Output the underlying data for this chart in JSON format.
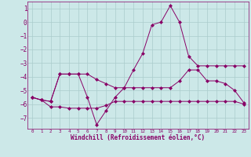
{
  "x": [
    0,
    1,
    2,
    3,
    4,
    5,
    6,
    7,
    8,
    9,
    10,
    11,
    12,
    13,
    14,
    15,
    16,
    17,
    18,
    19,
    20,
    21,
    22,
    23
  ],
  "line1": [
    -5.5,
    -5.7,
    -5.8,
    -3.8,
    -3.8,
    -3.8,
    -5.5,
    -7.5,
    -6.5,
    -5.5,
    -4.8,
    -3.5,
    -2.3,
    -0.2,
    0.0,
    1.2,
    0.0,
    -2.5,
    -3.2,
    -3.2,
    -3.2,
    -3.2,
    -3.2,
    -3.2
  ],
  "line2": [
    -5.5,
    -5.7,
    -5.8,
    -3.8,
    -3.8,
    -3.8,
    -3.8,
    -4.2,
    -4.5,
    -4.8,
    -4.8,
    -4.8,
    -4.8,
    -4.8,
    -4.8,
    -4.8,
    -4.3,
    -3.5,
    -3.5,
    -4.3,
    -4.3,
    -4.5,
    -5.0,
    -5.9
  ],
  "line3": [
    -5.5,
    -5.7,
    -6.2,
    -6.2,
    -6.3,
    -6.3,
    -6.3,
    -6.3,
    -6.1,
    -5.8,
    -5.8,
    -5.8,
    -5.8,
    -5.8,
    -5.8,
    -5.8,
    -5.8,
    -5.8,
    -5.8,
    -5.8,
    -5.8,
    -5.8,
    -5.8,
    -6.0
  ],
  "xlabel": "Windchill (Refroidissement éolien,°C)",
  "xlim": [
    -0.5,
    23.5
  ],
  "ylim": [
    -7.8,
    1.5
  ],
  "yticks": [
    1,
    0,
    -1,
    -2,
    -3,
    -4,
    -5,
    -6,
    -7
  ],
  "xticks": [
    0,
    1,
    2,
    3,
    4,
    5,
    6,
    7,
    8,
    9,
    10,
    11,
    12,
    13,
    14,
    15,
    16,
    17,
    18,
    19,
    20,
    21,
    22,
    23
  ],
  "bg_color": "#cce8e8",
  "grid_color": "#aacccc",
  "line_color": "#880066",
  "marker_size": 2.5
}
